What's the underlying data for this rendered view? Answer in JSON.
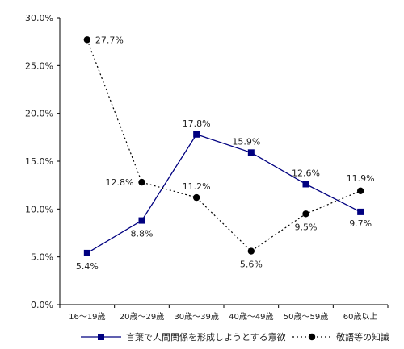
{
  "chart_data": {
    "type": "line",
    "title": "",
    "xlabel": "",
    "ylabel": "",
    "categories": [
      "16～19歳",
      "20歳～29歳",
      "30歳～39歳",
      "40歳～49歳",
      "50歳～59歳",
      "60歳以上"
    ],
    "ylim": [
      0,
      30
    ],
    "yticks": [
      0,
      5,
      10,
      15,
      20,
      25,
      30
    ],
    "ytick_labels": [
      "0.0%",
      "5.0%",
      "10.0%",
      "15.0%",
      "20.0%",
      "25.0%",
      "30.0%"
    ],
    "grid": false,
    "legend_position": "bottom",
    "series": [
      {
        "name": "言葉で人間関係を形成しようとする意欲",
        "values": [
          5.4,
          8.8,
          17.8,
          15.9,
          12.6,
          9.7
        ],
        "labels": [
          "5.4%",
          "8.8%",
          "17.8%",
          "15.9%",
          "12.6%",
          "9.7%"
        ],
        "marker": "square",
        "line": "solid",
        "color": "#000080"
      },
      {
        "name": "敬語等の知識",
        "values": [
          27.7,
          12.8,
          11.2,
          5.6,
          9.5,
          11.9
        ],
        "labels": [
          "27.7%",
          "12.8%",
          "11.2%",
          "5.6%",
          "9.5%",
          "11.9%"
        ],
        "marker": "circle",
        "line": "dotted",
        "color": "#000000"
      }
    ]
  }
}
